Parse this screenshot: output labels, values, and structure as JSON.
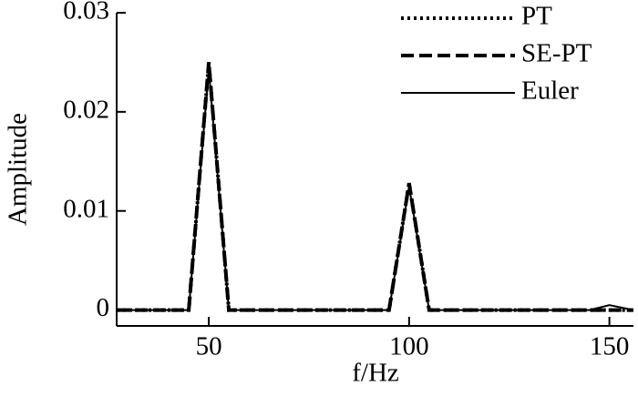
{
  "chart_data": {
    "type": "line",
    "x_label": "f/Hz",
    "y_label": "Amplitude",
    "x": [
      27,
      45,
      50,
      55,
      95,
      100,
      105,
      145,
      150,
      156
    ],
    "series": [
      {
        "name": "PT",
        "color": "#000000",
        "style": "dotted",
        "values": [
          0,
          0,
          0.025,
          0,
          0,
          0.0128,
          0,
          0,
          0,
          0
        ]
      },
      {
        "name": "SE-PT",
        "color": "#000000",
        "style": "dashed",
        "values": [
          0,
          0,
          0.025,
          0,
          0,
          0.0128,
          0,
          0,
          0,
          0
        ]
      },
      {
        "name": "Euler",
        "color": "#000000",
        "style": "solid",
        "values": [
          0,
          0,
          0.0243,
          0,
          0,
          0.0125,
          0,
          0,
          0.0005,
          0
        ]
      }
    ],
    "xlim": [
      27,
      156
    ],
    "ylim": [
      -0.0016,
      0.03
    ],
    "xticks": [
      50,
      100,
      150
    ],
    "yticks": [
      0,
      0.01,
      0.02,
      0.03
    ],
    "legend": "upper-right"
  }
}
